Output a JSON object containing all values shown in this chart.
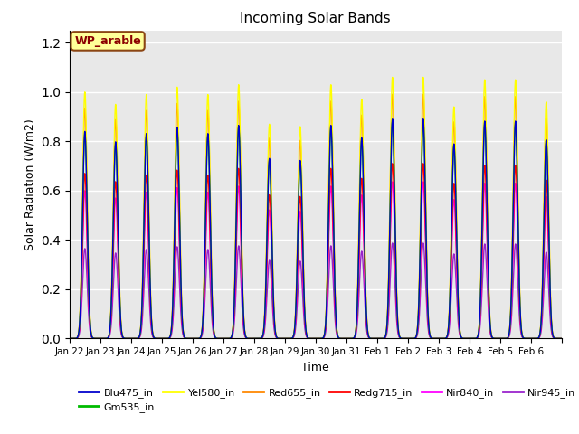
{
  "title": "Incoming Solar Bands",
  "xlabel": "Time",
  "ylabel": "Solar Radiation (W/m2)",
  "annotation_text": "WP_arable",
  "annotation_color": "#8B0000",
  "annotation_bg": "#FFFF99",
  "annotation_border": "#8B4513",
  "ylim": [
    0.0,
    1.25
  ],
  "bg_color": "#E8E8E8",
  "series": [
    {
      "label": "Blu475_in",
      "color": "#0000CC",
      "lw": 1.0
    },
    {
      "label": "Gm535_in",
      "color": "#00BB00",
      "lw": 1.0
    },
    {
      "label": "Yel580_in",
      "color": "#FFFF00",
      "lw": 1.0
    },
    {
      "label": "Red655_in",
      "color": "#FF8800",
      "lw": 1.0
    },
    {
      "label": "Redg715_in",
      "color": "#FF0000",
      "lw": 1.0
    },
    {
      "label": "Nir840_in",
      "color": "#FF00FF",
      "lw": 1.0
    },
    {
      "label": "Nir945_in",
      "color": "#9922CC",
      "lw": 1.0
    }
  ],
  "xtick_labels": [
    "Jan 22",
    "Jan 23",
    "Jan 24",
    "Jan 25",
    "Jan 26",
    "Jan 27",
    "Jan 28",
    "Jan 29",
    "Jan 30",
    "Jan 31",
    "Feb 1",
    "Feb 2",
    "Feb 3",
    "Feb 4",
    "Feb 5",
    "Feb 6"
  ],
  "peak_heights": [
    1.0,
    0.95,
    0.99,
    1.02,
    0.99,
    1.03,
    0.87,
    0.86,
    1.03,
    0.97,
    1.06,
    1.06,
    0.94,
    1.05,
    1.05,
    0.96
  ],
  "num_days": 16,
  "scales": {
    "Blu475_in": 0.84,
    "Gm535_in": 0.83,
    "Yel580_in": 1.0,
    "Red655_in": 0.935,
    "Redg715_in": 0.67,
    "Nir840_in": 0.6,
    "Nir945_in": 0.365
  },
  "sigma": 0.075
}
